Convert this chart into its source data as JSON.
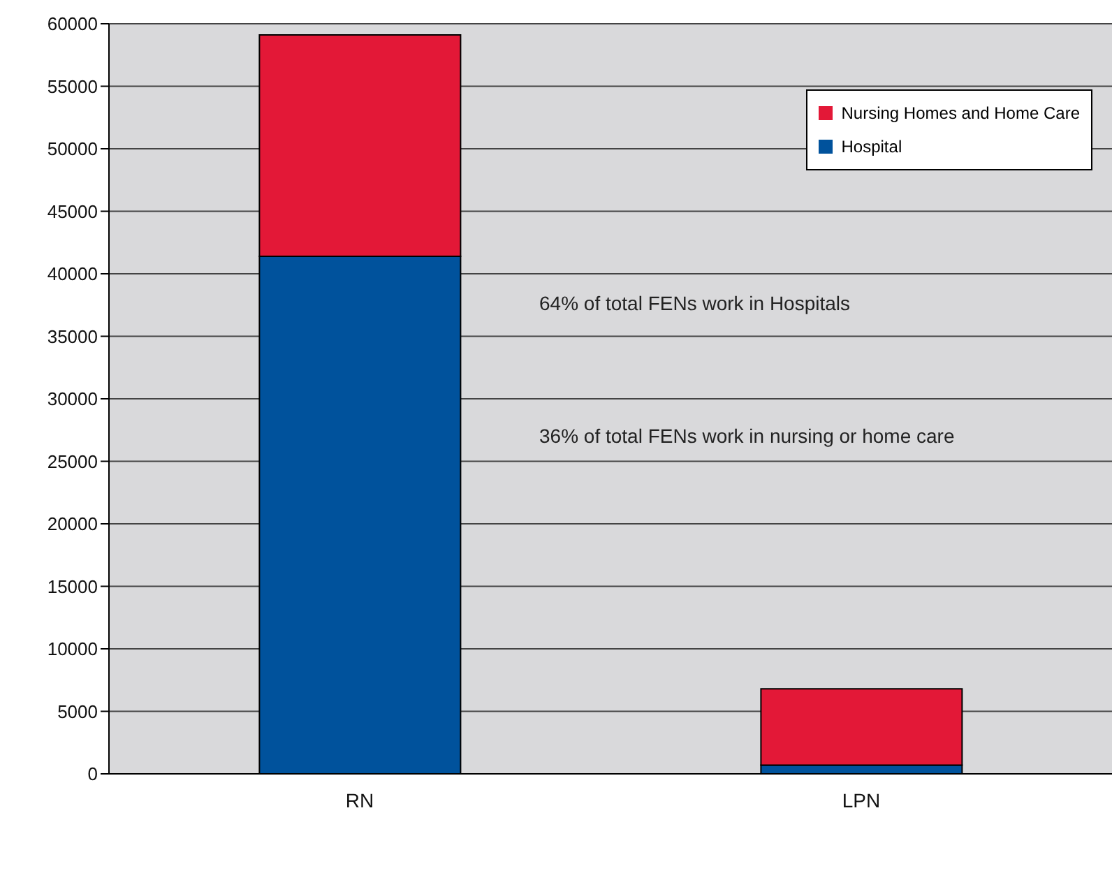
{
  "chart_data": {
    "type": "bar",
    "stacked": true,
    "categories": [
      "RN",
      "LPN"
    ],
    "series": [
      {
        "name": "Hospital",
        "color": "#00529c",
        "values": [
          41400,
          700
        ]
      },
      {
        "name": "Nursing Homes and Home Care",
        "color": "#e31837",
        "values": [
          17700,
          6100
        ]
      }
    ],
    "ylim": [
      0,
      60000
    ],
    "yticks": [
      0,
      5000,
      10000,
      15000,
      20000,
      25000,
      30000,
      35000,
      40000,
      45000,
      50000,
      55000,
      60000
    ],
    "grid": "y",
    "legend": "top right",
    "annotations": [
      "64% of total FENs work in Hospitals",
      "36% of total FENs work in nursing or home care"
    ]
  }
}
